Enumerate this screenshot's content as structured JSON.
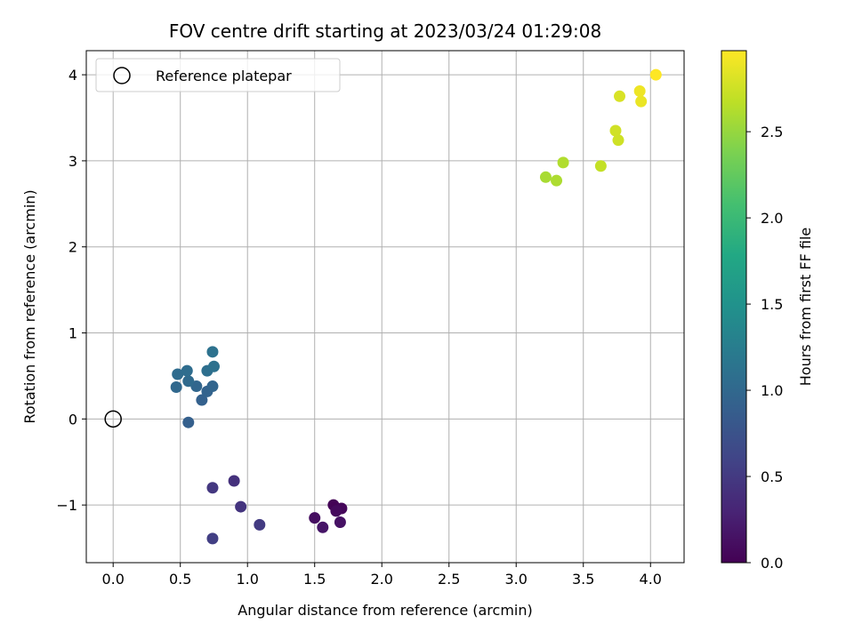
{
  "chart_data": {
    "type": "scatter",
    "title": "FOV centre drift starting at 2023/03/24 01:29:08",
    "xlabel": "Angular distance from reference (arcmin)",
    "ylabel": "Rotation from reference (arcmin)",
    "xlim": [
      -0.2,
      4.25
    ],
    "ylim": [
      -1.67,
      4.28
    ],
    "x_ticks": [
      0.0,
      0.5,
      1.0,
      1.5,
      2.0,
      2.5,
      3.0,
      3.5,
      4.0
    ],
    "x_tick_labels": [
      "0.0",
      "0.5",
      "1.0",
      "1.5",
      "2.0",
      "2.5",
      "3.0",
      "3.5",
      "4.0"
    ],
    "y_ticks": [
      -1,
      0,
      1,
      2,
      3,
      4
    ],
    "y_tick_labels": [
      "−1",
      "0",
      "1",
      "2",
      "3",
      "4"
    ],
    "grid": true,
    "legend": {
      "placement": "top-left",
      "entries": [
        "Reference platepar"
      ]
    },
    "reference_point": {
      "x": 0.0,
      "y": 0.0
    },
    "colorbar": {
      "label": "Hours from first FF file",
      "range": [
        0.0,
        2.97
      ],
      "ticks": [
        0.0,
        0.5,
        1.0,
        1.5,
        2.0,
        2.5
      ],
      "tick_labels": [
        "0.0",
        "0.5",
        "1.0",
        "1.5",
        "2.0",
        "2.5"
      ],
      "colormap": "viridis"
    },
    "points": [
      {
        "x": 1.64,
        "y": -1.0,
        "hours": 0.02
      },
      {
        "x": 1.7,
        "y": -1.04,
        "hours": 0.05
      },
      {
        "x": 1.66,
        "y": -1.07,
        "hours": 0.08
      },
      {
        "x": 1.5,
        "y": -1.15,
        "hours": 0.11
      },
      {
        "x": 1.69,
        "y": -1.2,
        "hours": 0.14
      },
      {
        "x": 1.56,
        "y": -1.26,
        "hours": 0.17
      },
      {
        "x": 0.9,
        "y": -0.72,
        "hours": 0.42
      },
      {
        "x": 0.95,
        "y": -1.02,
        "hours": 0.45
      },
      {
        "x": 0.74,
        "y": -0.8,
        "hours": 0.48
      },
      {
        "x": 1.09,
        "y": -1.23,
        "hours": 0.51
      },
      {
        "x": 0.74,
        "y": -1.39,
        "hours": 0.55
      },
      {
        "x": 0.56,
        "y": -0.04,
        "hours": 0.9
      },
      {
        "x": 0.66,
        "y": 0.22,
        "hours": 0.92
      },
      {
        "x": 0.7,
        "y": 0.32,
        "hours": 0.94
      },
      {
        "x": 0.74,
        "y": 0.38,
        "hours": 0.96
      },
      {
        "x": 0.62,
        "y": 0.38,
        "hours": 0.98
      },
      {
        "x": 0.47,
        "y": 0.37,
        "hours": 1.0
      },
      {
        "x": 0.56,
        "y": 0.44,
        "hours": 1.02
      },
      {
        "x": 0.48,
        "y": 0.52,
        "hours": 1.04
      },
      {
        "x": 0.55,
        "y": 0.56,
        "hours": 1.06
      },
      {
        "x": 0.7,
        "y": 0.56,
        "hours": 1.08
      },
      {
        "x": 0.75,
        "y": 0.61,
        "hours": 1.1
      },
      {
        "x": 0.74,
        "y": 0.78,
        "hours": 1.12
      },
      {
        "x": 3.22,
        "y": 2.81,
        "hours": 2.58
      },
      {
        "x": 3.3,
        "y": 2.77,
        "hours": 2.6
      },
      {
        "x": 3.35,
        "y": 2.98,
        "hours": 2.62
      },
      {
        "x": 3.63,
        "y": 2.94,
        "hours": 2.7
      },
      {
        "x": 3.76,
        "y": 3.24,
        "hours": 2.75
      },
      {
        "x": 3.74,
        "y": 3.35,
        "hours": 2.76
      },
      {
        "x": 3.77,
        "y": 3.75,
        "hours": 2.8
      },
      {
        "x": 3.93,
        "y": 3.69,
        "hours": 2.88
      },
      {
        "x": 3.92,
        "y": 3.81,
        "hours": 2.9
      },
      {
        "x": 4.04,
        "y": 4.0,
        "hours": 2.97
      }
    ]
  }
}
